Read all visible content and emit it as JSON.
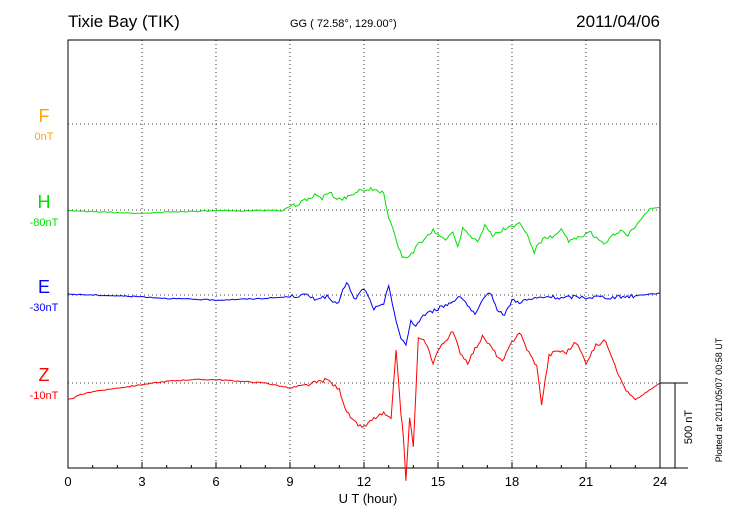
{
  "station": "Tixie Bay (TIK)",
  "coordinates": "GG ( 72.58°, 129.00°)",
  "date": "2011/04/06",
  "plotted_note": "Plotted at 2011/05/07 00:58 UT",
  "colors": {
    "F": "#ffa500",
    "H": "#00e000",
    "E": "#0000ff",
    "Z": "#ff0000",
    "axis": "#000000",
    "grid": "#000000"
  },
  "chart_data": {
    "type": "line",
    "title": "Tixie Bay (TIK)",
    "xlabel": "U T (hour)",
    "ylabel": "",
    "xlim": [
      0,
      24
    ],
    "xticks": [
      0,
      3,
      6,
      9,
      12,
      15,
      18,
      21,
      24
    ],
    "xtick_labels": [
      "0",
      "3",
      "6",
      "9",
      "12",
      "15",
      "18",
      "21",
      "24"
    ],
    "grid": true,
    "scale_bar": {
      "label": "500 nT",
      "value_nT": 500
    },
    "series": [
      {
        "name": "F",
        "baseline_label": "0nT",
        "color": "#ffa500",
        "x": [],
        "y": []
      },
      {
        "name": "H",
        "baseline_label": "-80nT",
        "color": "#00e000",
        "x": [
          0,
          1,
          2,
          3,
          4,
          5,
          6,
          7,
          8,
          8.7,
          9.0,
          9.3,
          9.6,
          10.0,
          10.3,
          10.6,
          10.9,
          11.2,
          11.5,
          11.8,
          12.0,
          12.2,
          12.5,
          12.8,
          13.0,
          13.2,
          13.4,
          13.55,
          13.7,
          13.85,
          14.0,
          14.2,
          14.5,
          14.8,
          15.0,
          15.3,
          15.6,
          15.8,
          16.0,
          16.3,
          16.6,
          16.9,
          17.2,
          17.5,
          17.8,
          18.0,
          18.3,
          18.6,
          18.9,
          19.1,
          19.4,
          19.7,
          20.0,
          20.3,
          20.6,
          20.9,
          21.2,
          21.5,
          21.8,
          22.1,
          22.4,
          22.7,
          23.0,
          23.3,
          23.6,
          24.0
        ],
        "y": [
          -5,
          -10,
          -15,
          -20,
          -12,
          -8,
          -5,
          -5,
          -2,
          -3,
          20,
          30,
          60,
          85,
          70,
          105,
          60,
          70,
          90,
          120,
          110,
          125,
          110,
          100,
          -40,
          -120,
          -220,
          -280,
          -290,
          -260,
          -250,
          -200,
          -170,
          -120,
          -140,
          -180,
          -120,
          -220,
          -100,
          -150,
          -180,
          -90,
          -150,
          -130,
          -100,
          -100,
          -80,
          -140,
          -250,
          -190,
          -160,
          -160,
          -120,
          -180,
          -170,
          -150,
          -130,
          -180,
          -200,
          -150,
          -120,
          -150,
          -100,
          -40,
          10,
          15
        ]
      },
      {
        "name": "E",
        "baseline_label": "-30nT",
        "color": "#0000ff",
        "x": [
          0,
          1,
          2,
          3,
          4,
          5,
          6,
          7,
          8,
          9,
          9.6,
          10.0,
          10.5,
          10.9,
          11.3,
          11.6,
          12.0,
          12.4,
          12.8,
          13.0,
          13.3,
          13.5,
          13.7,
          13.9,
          14.1,
          14.4,
          14.7,
          15.0,
          15.3,
          15.6,
          15.9,
          16.2,
          16.5,
          16.8,
          17.1,
          17.4,
          17.7,
          18.0,
          18.3,
          18.6,
          19.0,
          19.5,
          20.0,
          20.5,
          21.0,
          21.5,
          22.0,
          22.5,
          23.0,
          23.5,
          24.0
        ],
        "y": [
          5,
          0,
          -5,
          -10,
          -20,
          -25,
          -30,
          -25,
          -20,
          -10,
          0,
          -20,
          -10,
          -60,
          80,
          -30,
          40,
          -80,
          -60,
          60,
          -150,
          -260,
          -300,
          -150,
          -180,
          -120,
          -100,
          -80,
          -60,
          -40,
          0,
          -60,
          -120,
          -40,
          20,
          -80,
          -120,
          -30,
          -40,
          -30,
          -20,
          -10,
          -20,
          -10,
          -15,
          -10,
          -15,
          -10,
          -5,
          5,
          10
        ]
      },
      {
        "name": "Z",
        "baseline_label": "-10nT",
        "color": "#ff0000",
        "x": [
          0,
          0.5,
          1,
          2,
          3,
          4,
          5,
          6,
          7,
          8,
          9,
          9.5,
          10.0,
          10.5,
          11.0,
          11.3,
          11.6,
          12.0,
          12.4,
          12.8,
          13.1,
          13.3,
          13.5,
          13.6,
          13.7,
          13.85,
          14.0,
          14.2,
          14.5,
          14.8,
          15.0,
          15.3,
          15.6,
          15.9,
          16.2,
          16.5,
          16.8,
          17.0,
          17.3,
          17.6,
          18.0,
          18.3,
          18.6,
          19.0,
          19.2,
          19.5,
          19.8,
          20.2,
          20.6,
          21.0,
          21.4,
          21.8,
          22.1,
          22.4,
          22.7,
          23.0,
          23.4,
          24.0
        ],
        "y": [
          -100,
          -70,
          -50,
          -30,
          -10,
          10,
          20,
          20,
          10,
          0,
          -30,
          -20,
          0,
          20,
          -40,
          -170,
          -230,
          -260,
          -210,
          -180,
          -220,
          200,
          -180,
          -320,
          -580,
          -200,
          -380,
          260,
          240,
          120,
          190,
          250,
          300,
          180,
          120,
          200,
          270,
          240,
          180,
          120,
          240,
          300,
          200,
          100,
          -120,
          160,
          190,
          180,
          240,
          120,
          220,
          250,
          140,
          20,
          -60,
          -100,
          -60,
          0
        ]
      }
    ]
  }
}
